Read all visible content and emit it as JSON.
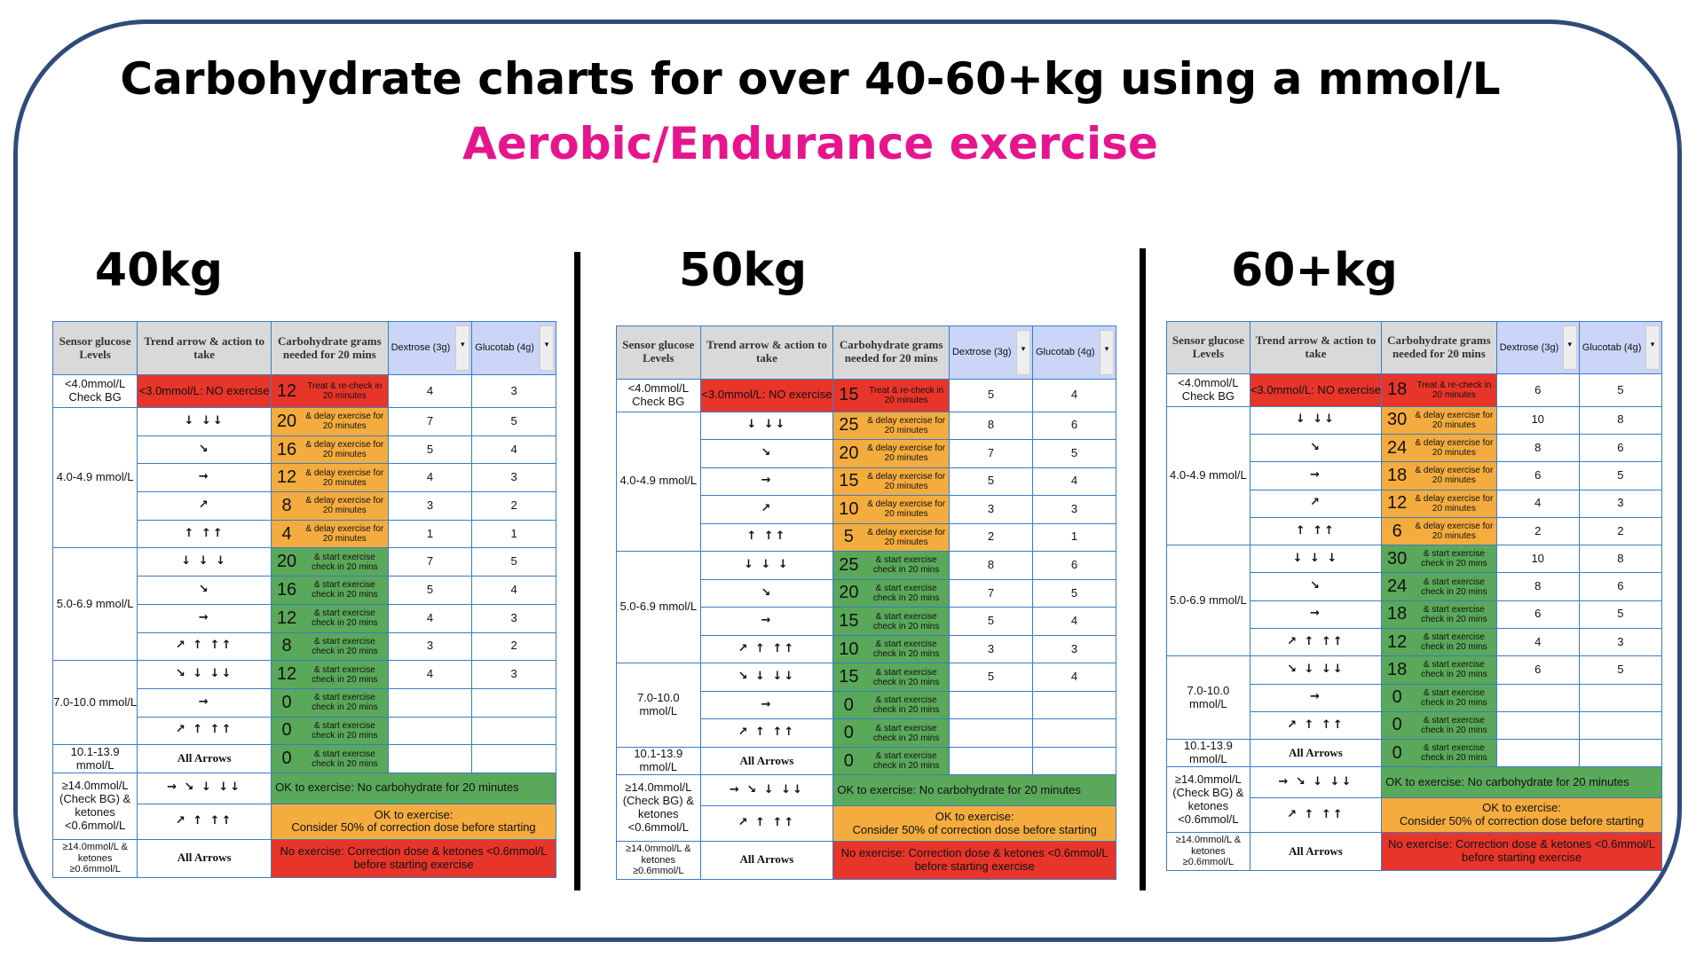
{
  "title": "Carbohydrate charts for over 40-60+kg using a mmol/L",
  "subtitle": "Aerobic/Endurance exercise",
  "colors": {
    "frame": "#2f4b7c",
    "subtitle": "#e6158e",
    "red": "#e8352a",
    "orange": "#f4ac3e",
    "green": "#5aa85a",
    "header_gray": "#d9d9d9",
    "header_blue": "#cbd5f7"
  },
  "headers": {
    "sensor": "Sensor glucose Levels",
    "trend": "Trend arrow & action to take",
    "carbs": "Carbohydrate grams needed for 20 mins",
    "dextrose": "Dextrose (3g)",
    "glucotab": "Glucotab (4g)",
    "filter_icon": "▾"
  },
  "levels": {
    "low": "<4.0mmol/L Check BG",
    "l4": "4.0-4.9 mmol/L",
    "l5": "5.0-6.9 mmol/L",
    "l7": "7.0-10.0 mmol/L",
    "l10": "10.1-13.9 mmol/L",
    "l14": "≥14.0mmol/L (Check BG) & ketones <0.6mmol/L",
    "l14k": "≥14.0mmol/L & ketones ≥0.6mmol/L"
  },
  "trends": [
    "<3.0mmol/L: NO exercise",
    "↓  ↓↓",
    "↘",
    "→",
    "↗",
    "↑  ↑↑",
    "↓  ↓ ↓",
    "↘",
    "→",
    "↗ ↑  ↑↑",
    "↘ ↓  ↓↓",
    "→",
    "↗ ↑  ↑↑",
    "All Arrows"
  ],
  "trends14": [
    "→ ↘ ↓ ↓↓",
    "↗ ↑  ↑↑"
  ],
  "trend14k": "All Arrows",
  "notes": {
    "treat": "Treat & re-check in 20 minutes",
    "delay": "& delay exercise for 20 minutes",
    "start": "& start exercise check in 20 mins"
  },
  "spans": {
    "ok_green": "OK to exercise: No carbohydrate for 20 minutes",
    "ok_orange_1": "OK to exercise:",
    "ok_orange_2": "Consider 50% of correction dose before starting",
    "no_red_1": "No exercise: Correction dose & ketones <0.6mmol/L",
    "no_red_2": "before starting exercise"
  },
  "tables": [
    {
      "weight": "40kg",
      "carbs": [
        "12",
        "20",
        "16",
        "12",
        "8",
        "4",
        "20",
        "16",
        "12",
        "8",
        "12",
        "0",
        "0",
        "0"
      ],
      "dextrose": [
        "4",
        "7",
        "5",
        "4",
        "3",
        "1",
        "7",
        "5",
        "4",
        "3",
        "4",
        "",
        "",
        ""
      ],
      "glucotab": [
        "3",
        "5",
        "4",
        "3",
        "2",
        "1",
        "5",
        "4",
        "3",
        "2",
        "3",
        "",
        "",
        ""
      ]
    },
    {
      "weight": "50kg",
      "carbs": [
        "15",
        "25",
        "20",
        "15",
        "10",
        "5",
        "25",
        "20",
        "15",
        "10",
        "15",
        "0",
        "0",
        "0"
      ],
      "dextrose": [
        "5",
        "8",
        "7",
        "5",
        "3",
        "2",
        "8",
        "7",
        "5",
        "3",
        "5",
        "",
        "",
        ""
      ],
      "glucotab": [
        "4",
        "6",
        "5",
        "4",
        "3",
        "1",
        "6",
        "5",
        "4",
        "3",
        "4",
        "",
        "",
        ""
      ]
    },
    {
      "weight": "60+kg",
      "carbs": [
        "18",
        "30",
        "24",
        "18",
        "12",
        "6",
        "30",
        "24",
        "18",
        "12",
        "18",
        "0",
        "0",
        "0"
      ],
      "dextrose": [
        "6",
        "10",
        "8",
        "6",
        "4",
        "2",
        "10",
        "8",
        "6",
        "4",
        "6",
        "",
        "",
        ""
      ],
      "glucotab": [
        "5",
        "8",
        "6",
        "5",
        "3",
        "2",
        "8",
        "6",
        "5",
        "3",
        "5",
        "",
        "",
        ""
      ]
    }
  ]
}
